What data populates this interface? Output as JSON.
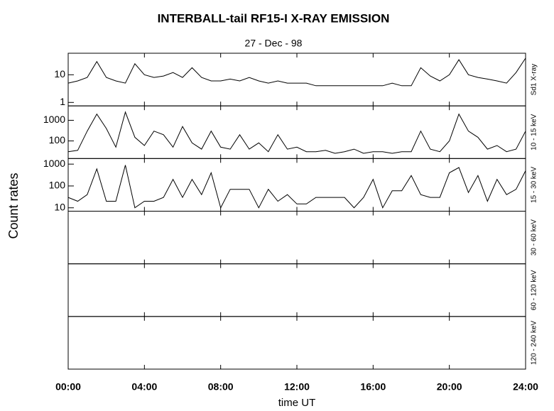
{
  "title": "INTERBALL-tail  RF15-I   X-RAY  EMISSION",
  "subtitle": "27 - Dec - 98",
  "xlabel": "time UT",
  "ylabel": "Count  rates",
  "chart_data": [
    {
      "type": "line",
      "label": "Sd1 X-ray",
      "log_y": true,
      "xlim": [
        0,
        24
      ],
      "ylim": [
        0.75,
        60
      ],
      "yticks": [
        1,
        10
      ],
      "x": [
        0,
        0.5,
        1,
        1.5,
        2,
        2.5,
        3,
        3.5,
        4,
        4.5,
        5,
        5.5,
        6,
        6.5,
        7,
        7.5,
        8,
        8.5,
        9,
        9.5,
        10,
        10.5,
        11,
        11.5,
        12,
        12.5,
        13,
        13.5,
        14,
        14.5,
        15,
        15.5,
        16,
        16.5,
        17,
        17.5,
        18,
        18.5,
        19,
        19.5,
        20,
        20.5,
        21,
        21.5,
        22,
        22.5,
        23,
        23.5,
        24
      ],
      "series": [
        {
          "color": "#000000",
          "values": [
            5,
            6,
            8,
            30,
            8,
            6,
            5,
            25,
            10,
            8,
            9,
            12,
            8,
            18,
            8,
            6,
            6,
            7,
            6,
            8,
            6,
            5,
            6,
            5,
            5,
            5,
            4,
            4,
            4,
            4,
            4,
            4,
            4,
            4,
            5,
            4,
            4,
            18,
            9,
            6,
            10,
            35,
            10,
            8,
            7,
            6,
            5,
            12,
            40
          ]
        }
      ]
    },
    {
      "type": "line",
      "label": "10 - 15 keV",
      "log_y": true,
      "xlim": [
        0,
        24
      ],
      "ylim": [
        14,
        5000
      ],
      "yticks": [
        100,
        1000
      ],
      "x": [
        0,
        0.5,
        1,
        1.5,
        2,
        2.5,
        3,
        3.5,
        4,
        4.5,
        5,
        5.5,
        6,
        6.5,
        7,
        7.5,
        8,
        8.5,
        9,
        9.5,
        10,
        10.5,
        11,
        11.5,
        12,
        12.5,
        13,
        13.5,
        14,
        14.5,
        15,
        15.5,
        16,
        16.5,
        17,
        17.5,
        18,
        18.5,
        19,
        19.5,
        20,
        20.5,
        21,
        21.5,
        22,
        22.5,
        23,
        23.5,
        24
      ],
      "series": [
        {
          "color": "#000000",
          "values": [
            30,
            35,
            300,
            2000,
            400,
            50,
            2500,
            150,
            60,
            300,
            200,
            50,
            500,
            80,
            40,
            300,
            50,
            40,
            200,
            40,
            80,
            30,
            200,
            40,
            50,
            30,
            30,
            35,
            25,
            30,
            40,
            25,
            30,
            30,
            25,
            30,
            30,
            300,
            40,
            30,
            100,
            2000,
            300,
            150,
            40,
            60,
            30,
            40,
            300
          ]
        }
      ]
    },
    {
      "type": "line",
      "label": "15 - 30 keV",
      "log_y": true,
      "xlim": [
        0,
        24
      ],
      "ylim": [
        7,
        1800
      ],
      "yticks": [
        10,
        100,
        1000
      ],
      "x": [
        0,
        0.5,
        1,
        1.5,
        2,
        2.5,
        3,
        3.5,
        4,
        4.5,
        5,
        5.5,
        6,
        6.5,
        7,
        7.5,
        8,
        8.5,
        9,
        9.5,
        10,
        10.5,
        11,
        11.5,
        12,
        12.5,
        13,
        13.5,
        14,
        14.5,
        15,
        15.5,
        16,
        16.5,
        17,
        17.5,
        18,
        18.5,
        19,
        19.5,
        20,
        20.5,
        21,
        21.5,
        22,
        22.5,
        23,
        23.5,
        24
      ],
      "series": [
        {
          "color": "#000000",
          "values": [
            30,
            20,
            40,
            600,
            20,
            20,
            900,
            10,
            20,
            20,
            30,
            200,
            30,
            200,
            40,
            400,
            10,
            70,
            70,
            70,
            10,
            70,
            20,
            40,
            15,
            15,
            30,
            30,
            30,
            30,
            10,
            30,
            200,
            10,
            60,
            60,
            300,
            40,
            30,
            30,
            400,
            700,
            50,
            300,
            20,
            200,
            40,
            70,
            500
          ]
        }
      ]
    },
    {
      "type": "line",
      "label": "30 - 60 keV",
      "xlim": [
        0,
        24
      ],
      "series": []
    },
    {
      "type": "line",
      "label": "60 - 120 keV",
      "xlim": [
        0,
        24
      ],
      "series": []
    },
    {
      "type": "line",
      "label": "120 - 240 keV",
      "xlim": [
        0,
        24
      ],
      "series": [],
      "xticks": [
        {
          "value": 0,
          "label": "00:00"
        },
        {
          "value": 4,
          "label": "04:00"
        },
        {
          "value": 8,
          "label": "08:00"
        },
        {
          "value": 12,
          "label": "12:00"
        },
        {
          "value": 16,
          "label": "16:00"
        },
        {
          "value": 20,
          "label": "20:00"
        },
        {
          "value": 24,
          "label": "24:00"
        }
      ]
    }
  ]
}
